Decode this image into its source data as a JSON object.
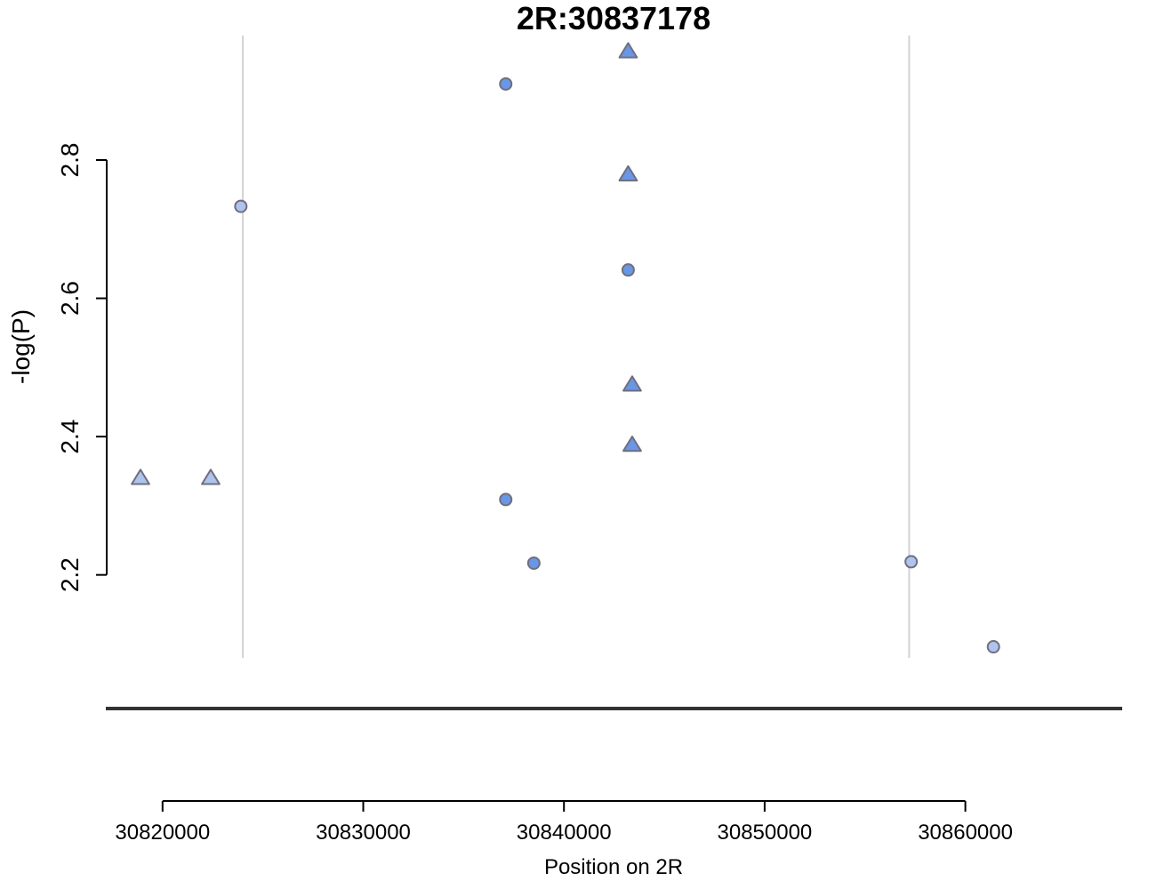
{
  "chart_data": {
    "type": "scatter",
    "title": "2R:30837178",
    "xlabel": "Position on 2R",
    "ylabel": "-log(P)",
    "xlim": [
      30811900,
      30869500
    ],
    "ylim": [
      2.08,
      2.98
    ],
    "x_ticks": [
      30820000,
      30830000,
      30840000,
      30850000,
      30860000
    ],
    "y_ticks": [
      2.2,
      2.4,
      2.6,
      2.8
    ],
    "x_tick_labels": [
      "30820000",
      "30830000",
      "30840000",
      "30850000",
      "30860000"
    ],
    "y_tick_labels": [
      "2.2",
      "2.4",
      "2.6",
      "2.8"
    ],
    "grid": false,
    "vertical_reference_lines_x": [
      30824000,
      30857200
    ],
    "colors": {
      "dark_point": "#6A96E6",
      "light_point": "#AFC3EE",
      "point_outline": "#6F6F7F",
      "reference_line": "#D3D3D3",
      "baseline": "#333333"
    },
    "points": [
      {
        "x": 30843200,
        "y": 2.957,
        "shape": "triangle",
        "shade": "dark"
      },
      {
        "x": 30837100,
        "y": 2.91,
        "shape": "circle",
        "shade": "dark"
      },
      {
        "x": 30843200,
        "y": 2.779,
        "shape": "triangle",
        "shade": "dark"
      },
      {
        "x": 30823900,
        "y": 2.733,
        "shape": "circle",
        "shade": "light"
      },
      {
        "x": 30843200,
        "y": 2.641,
        "shape": "circle",
        "shade": "dark"
      },
      {
        "x": 30843400,
        "y": 2.475,
        "shape": "triangle",
        "shade": "dark"
      },
      {
        "x": 30843400,
        "y": 2.388,
        "shape": "triangle",
        "shade": "dark"
      },
      {
        "x": 30818900,
        "y": 2.34,
        "shape": "triangle",
        "shade": "light"
      },
      {
        "x": 30822400,
        "y": 2.34,
        "shape": "triangle",
        "shade": "light"
      },
      {
        "x": 30837100,
        "y": 2.309,
        "shape": "circle",
        "shade": "dark"
      },
      {
        "x": 30838500,
        "y": 2.217,
        "shape": "circle",
        "shade": "dark"
      },
      {
        "x": 30857300,
        "y": 2.219,
        "shape": "circle",
        "shade": "light"
      },
      {
        "x": 30861400,
        "y": 2.096,
        "shape": "circle",
        "shade": "light"
      }
    ]
  }
}
